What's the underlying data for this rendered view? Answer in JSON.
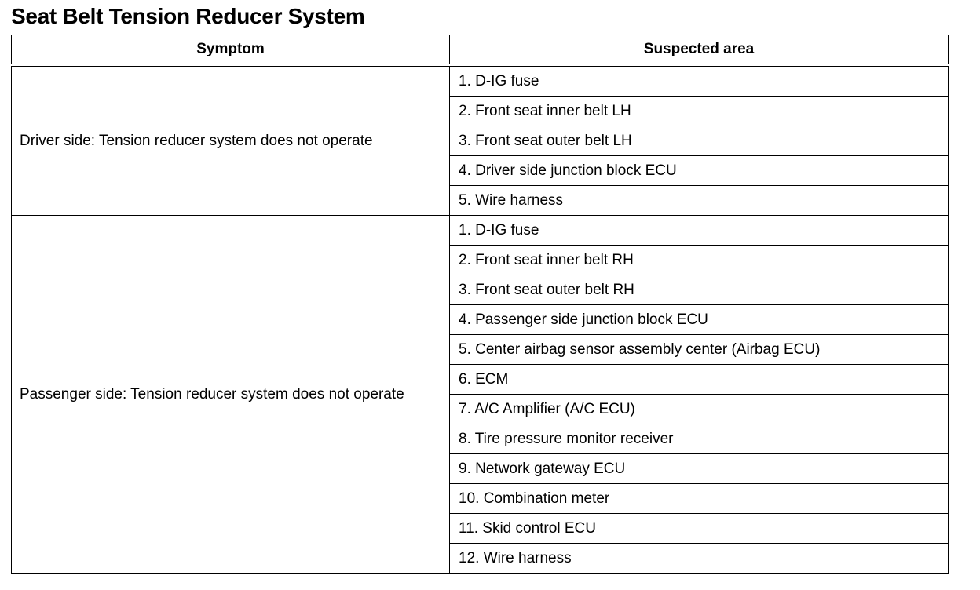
{
  "title": "Seat Belt Tension Reducer System",
  "headers": {
    "symptom": "Symptom",
    "area": "Suspected area"
  },
  "groups": [
    {
      "symptom": "Driver side: Tension reducer system does not operate",
      "areas": [
        "1. D-IG fuse",
        "2. Front seat inner belt LH",
        "3. Front seat outer belt LH",
        "4. Driver side junction block ECU",
        "5. Wire harness"
      ]
    },
    {
      "symptom": "Passenger side: Tension reducer system does not operate",
      "areas": [
        "1. D-IG fuse",
        "2. Front seat inner belt RH",
        "3. Front seat outer belt RH",
        "4. Passenger side junction block ECU",
        "5. Center airbag sensor assembly center (Airbag ECU)",
        "6. ECM",
        "7. A/C Amplifier  (A/C ECU)",
        "8. Tire pressure monitor receiver",
        "9. Network gateway ECU",
        "10. Combination meter",
        "11. Skid control ECU",
        "12. Wire harness"
      ]
    }
  ]
}
